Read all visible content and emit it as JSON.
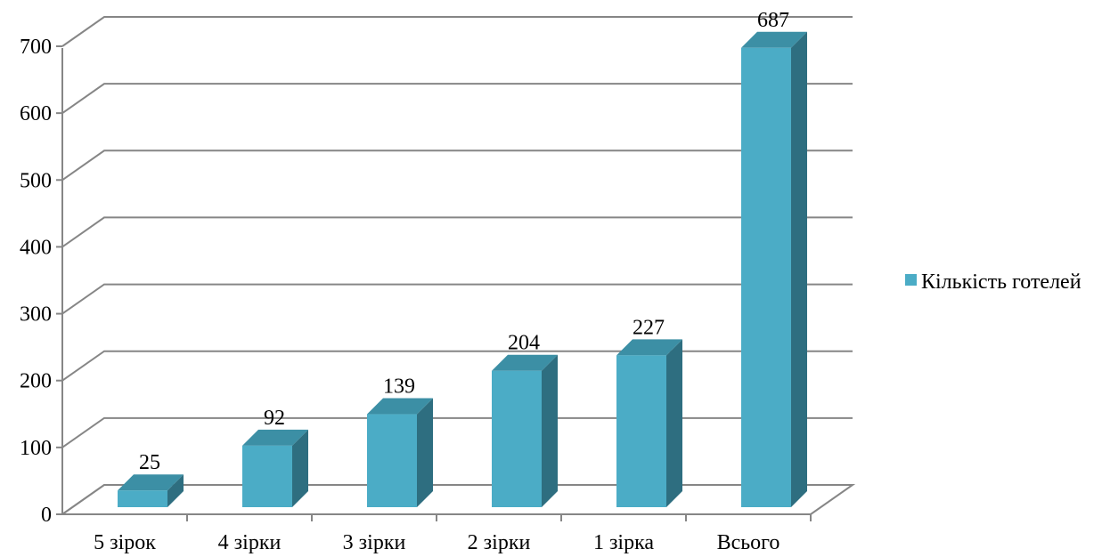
{
  "chart_data": {
    "type": "bar",
    "categories": [
      "5 зірок",
      "4 зірки",
      "3 зірки",
      "2 зірки",
      "1 зірка",
      "Всього"
    ],
    "series": [
      {
        "name": "Кількість готелей",
        "values": [
          25,
          92,
          139,
          204,
          227,
          687
        ]
      }
    ],
    "data_labels": [
      "25",
      "92",
      "139",
      "204",
      "227",
      "687"
    ],
    "y_ticks": [
      "0",
      "100",
      "200",
      "300",
      "400",
      "500",
      "600",
      "700"
    ],
    "ylim": [
      0,
      700
    ],
    "grid": true,
    "legend": "right",
    "colors": {
      "bar_front": "#4BACC6",
      "bar_top": "#3C8FA5",
      "bar_side": "#2E6E80",
      "grid": "#868686"
    }
  }
}
